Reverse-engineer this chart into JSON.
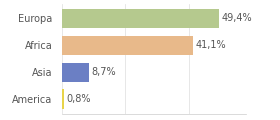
{
  "categories": [
    "Europa",
    "Africa",
    "Asia",
    "America"
  ],
  "values": [
    49.4,
    41.1,
    8.7,
    0.8
  ],
  "labels": [
    "49,4%",
    "41,1%",
    "8,7%",
    "0,8%"
  ],
  "bar_colors": [
    "#b5c98e",
    "#e8b98a",
    "#6b7fc4",
    "#e8d44a"
  ],
  "background_color": "#ffffff",
  "xlim": [
    0,
    58
  ],
  "bar_height": 0.72,
  "label_fontsize": 7.0,
  "category_fontsize": 7.0,
  "text_color": "#555555"
}
